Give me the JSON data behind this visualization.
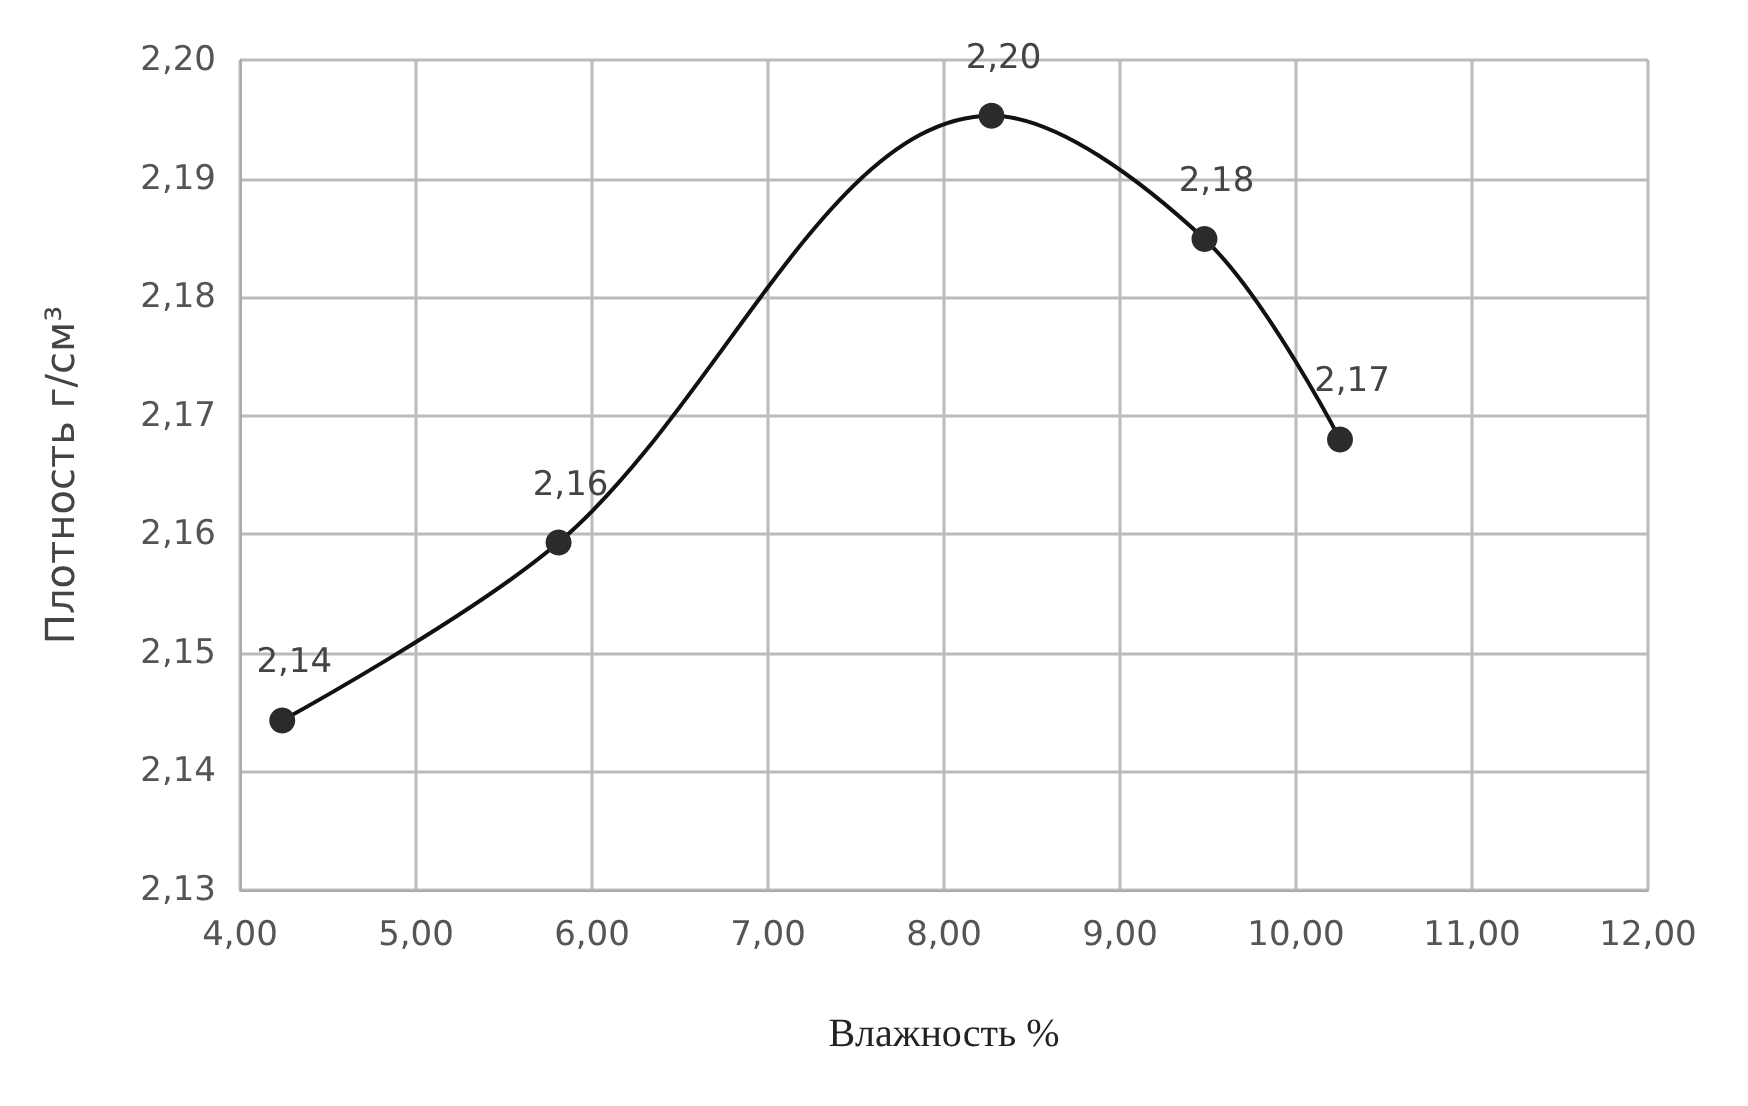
{
  "chart_data": {
    "type": "line",
    "xlabel": "Влажность %",
    "ylabel": "Плотность г/см³",
    "x": [
      4.24,
      5.81,
      8.27,
      9.48,
      10.25
    ],
    "series": [
      {
        "color": "#2b2b2b",
        "values": [
          2.1443,
          2.1593,
          2.1953,
          2.1849,
          2.168
        ],
        "value_labels": [
          "2,14",
          "2,16",
          "2,20",
          "2,18",
          "2,17"
        ]
      }
    ],
    "xlim": [
      4,
      12
    ],
    "xticks": [
      {
        "value": 4,
        "label": "4,00"
      },
      {
        "value": 5,
        "label": "5,00"
      },
      {
        "value": 6,
        "label": "6,00"
      },
      {
        "value": 7,
        "label": "7,00"
      },
      {
        "value": 8,
        "label": "8,00"
      },
      {
        "value": 9,
        "label": "9,00"
      },
      {
        "value": 10,
        "label": "10,00"
      },
      {
        "value": 11,
        "label": "11,00"
      },
      {
        "value": 12,
        "label": "12,00"
      }
    ],
    "ylim": [
      2.13,
      2.2
    ],
    "yticks": [
      {
        "value": 2.13,
        "label": "2,13"
      },
      {
        "value": 2.14,
        "label": "2,14"
      },
      {
        "value": 2.15,
        "label": "2,15"
      },
      {
        "value": 2.16,
        "label": "2,16"
      },
      {
        "value": 2.17,
        "label": "2,17"
      },
      {
        "value": 2.18,
        "label": "2,18"
      },
      {
        "value": 2.19,
        "label": "2,19"
      },
      {
        "value": 2.2,
        "label": "2,20"
      }
    ],
    "grid": true,
    "marker": "circle",
    "line_style": "solid"
  }
}
